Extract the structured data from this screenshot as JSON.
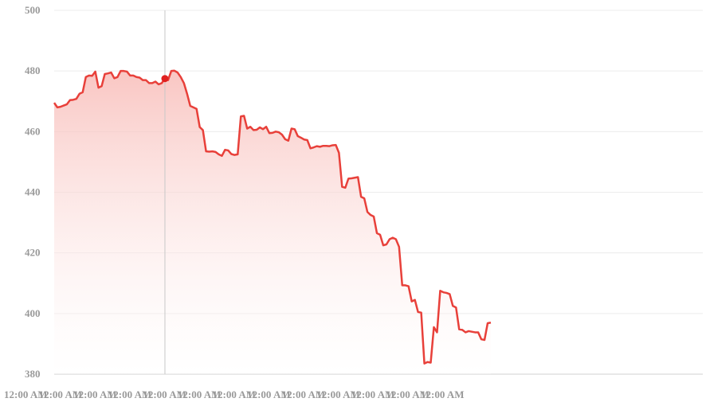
{
  "chart_data": {
    "type": "area",
    "title": "",
    "xlabel": "",
    "ylabel": "",
    "ylim": [
      380,
      500
    ],
    "yticks": [
      380,
      400,
      420,
      440,
      460,
      480,
      500
    ],
    "xtick_labels": [
      "12:00 AM",
      "12:00 AM",
      "12:00 AM",
      "12:00 AM",
      "12:00 AM",
      "12:00 AM",
      "12:00 AM",
      "12:00 AM",
      "12:00 AM",
      "12:00 AM",
      "12:00 AM",
      "12:00 AM",
      "12:00 AM"
    ],
    "grid": true,
    "legend": "none",
    "n_slots": 206,
    "highlight_index": 35,
    "colors": {
      "line": "#e8403a",
      "fill_top": "#f8bcb8",
      "marker": "#e02020",
      "crosshair": "#c8c8c8",
      "grid": "#ececec",
      "tick": "#9a9a9a"
    },
    "series": [
      {
        "values": [
          469.5,
          468.0,
          468.2,
          468.6,
          469.0,
          470.4,
          470.5,
          470.8,
          472.5,
          473.0,
          478.0,
          478.5,
          478.4,
          479.8,
          474.5,
          475.0,
          479.0,
          479.2,
          479.5,
          477.6,
          478.0,
          480.0,
          480.0,
          479.8,
          478.5,
          478.5,
          478.0,
          477.8,
          477.0,
          477.0,
          476.0,
          476.0,
          476.5,
          475.6,
          476.0,
          477.5,
          477.0,
          480.0,
          480.1,
          479.5,
          478.0,
          476.0,
          472.5,
          468.5,
          468.0,
          467.5,
          461.5,
          460.5,
          453.5,
          453.4,
          453.5,
          453.3,
          452.5,
          452.0,
          454.0,
          453.8,
          452.6,
          452.3,
          452.5,
          465.0,
          465.2,
          461.0,
          461.6,
          460.5,
          460.6,
          461.4,
          460.8,
          461.6,
          459.5,
          459.6,
          460.0,
          459.8,
          459.0,
          457.5,
          457.0,
          461.0,
          460.8,
          458.5,
          458.0,
          457.4,
          457.2,
          454.5,
          454.8,
          455.2,
          455.0,
          455.3,
          455.3,
          455.2,
          455.5,
          455.6,
          453.0,
          441.8,
          441.5,
          444.5,
          444.6,
          444.8,
          445.0,
          438.5,
          438.0,
          433.5,
          432.5,
          432.0,
          426.5,
          426.0,
          422.5,
          422.8,
          424.5,
          425.0,
          424.5,
          422.0,
          409.3,
          409.3,
          409.0,
          404.0,
          404.5,
          400.5,
          400.3,
          383.5,
          384.0,
          383.8,
          395.5,
          393.8,
          407.5,
          407.0,
          406.8,
          406.4,
          402.5,
          402.0,
          394.8,
          394.6,
          393.8,
          394.2,
          394.0,
          393.8,
          393.8,
          391.5,
          391.3,
          396.8,
          397.0
        ]
      }
    ]
  }
}
